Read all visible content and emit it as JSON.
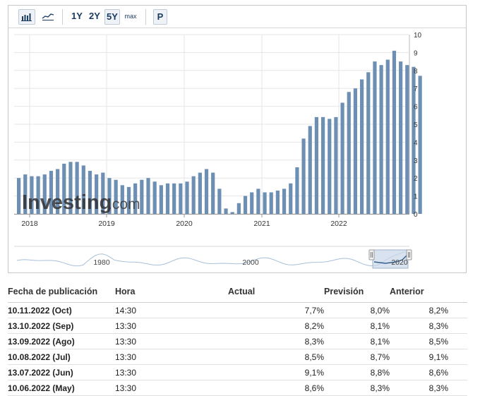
{
  "toolbar": {
    "bar_icon": "bar-chart-icon",
    "line_icon": "line-chart-icon",
    "range_buttons": [
      "1Y",
      "2Y",
      "5Y",
      "max"
    ],
    "active_range": "5Y",
    "p_button": "P"
  },
  "chart_data": {
    "type": "bar",
    "bar_color": "#6d8fb3",
    "ylim": [
      0,
      10
    ],
    "y_ticks": [
      "0",
      "1",
      "2",
      "3",
      "4",
      "5",
      "6",
      "7",
      "8",
      "9",
      "10"
    ],
    "x_tick_labels": [
      "2018",
      "2019",
      "2020",
      "2021",
      "2022"
    ],
    "watermark": "Investing.com",
    "values": [
      2.0,
      2.2,
      2.1,
      2.1,
      2.2,
      2.4,
      2.5,
      2.8,
      2.9,
      2.9,
      2.7,
      2.4,
      2.2,
      2.3,
      2.0,
      1.9,
      1.6,
      1.5,
      1.7,
      1.9,
      2.0,
      1.8,
      1.6,
      1.7,
      1.7,
      1.7,
      1.8,
      2.1,
      2.3,
      2.5,
      2.3,
      1.4,
      0.3,
      0.1,
      0.6,
      1.0,
      1.2,
      1.4,
      1.2,
      1.2,
      1.3,
      1.4,
      1.7,
      2.6,
      4.2,
      4.9,
      5.4,
      5.4,
      5.3,
      5.4,
      6.2,
      6.8,
      7.0,
      7.5,
      7.9,
      8.5,
      8.3,
      8.6,
      9.1,
      8.5,
      8.3,
      8.2,
      7.7
    ],
    "navigator": {
      "x_tick_labels": [
        "1980",
        "2000",
        "2020"
      ],
      "line_color": "#a9c0d9",
      "selection_color": "#c9d7e8"
    }
  },
  "table": {
    "headers": {
      "date": "Fecha de publicación",
      "time": "Hora",
      "actual": "Actual",
      "forecast": "Previsión",
      "previous": "Anterior"
    },
    "rows": [
      {
        "date": "10.11.2022 (Oct)",
        "time": "14:30",
        "actual": "7,7%",
        "actual_color": "red",
        "forecast": "8,0%",
        "previous": "8,2%"
      },
      {
        "date": "13.10.2022 (Sep)",
        "time": "13:30",
        "actual": "8,2%",
        "actual_color": "green",
        "forecast": "8,1%",
        "previous": "8,3%"
      },
      {
        "date": "13.09.2022 (Ago)",
        "time": "13:30",
        "actual": "8,3%",
        "actual_color": "green",
        "forecast": "8,1%",
        "previous": "8,5%"
      },
      {
        "date": "10.08.2022 (Jul)",
        "time": "13:30",
        "actual": "8,5%",
        "actual_color": "red",
        "forecast": "8,7%",
        "previous": "9,1%"
      },
      {
        "date": "13.07.2022 (Jun)",
        "time": "13:30",
        "actual": "9,1%",
        "actual_color": "green",
        "forecast": "8,8%",
        "previous": "8,6%"
      },
      {
        "date": "10.06.2022 (May)",
        "time": "13:30",
        "actual": "8,6%",
        "actual_color": "green",
        "forecast": "8,3%",
        "previous": "8,3%"
      }
    ]
  }
}
